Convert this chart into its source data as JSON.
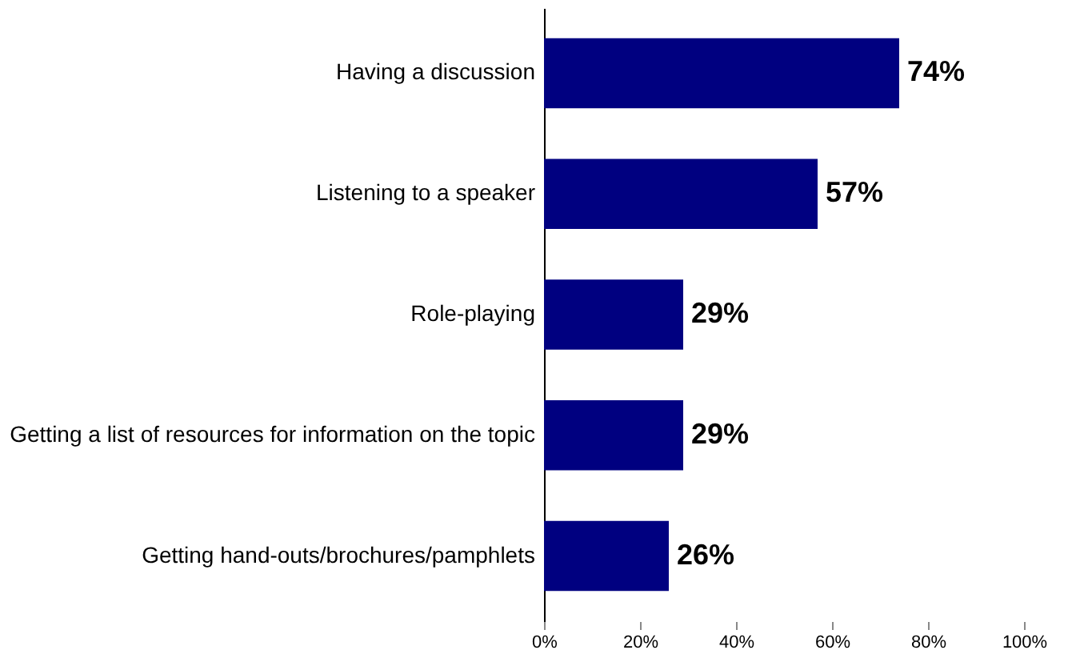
{
  "chart_data": {
    "type": "bar",
    "orientation": "horizontal",
    "categories": [
      "Having a discussion",
      "Listening to a speaker",
      "Role-playing",
      "Getting a list of resources for information on the topic",
      "Getting hand-outs/brochures/pamphlets"
    ],
    "values": [
      74,
      57,
      29,
      29,
      26
    ],
    "color": "#000080",
    "value_labels": [
      "74%",
      "57%",
      "29%",
      "29%",
      "26%"
    ],
    "xlim": [
      0,
      100
    ],
    "xticks": [
      {
        "value": 0,
        "label": "0%"
      },
      {
        "value": 20,
        "label": "20%"
      },
      {
        "value": 40,
        "label": "40%"
      },
      {
        "value": 60,
        "label": "60%"
      },
      {
        "value": 80,
        "label": "80%"
      },
      {
        "value": 100,
        "label": "100%"
      }
    ],
    "grid": false
  }
}
